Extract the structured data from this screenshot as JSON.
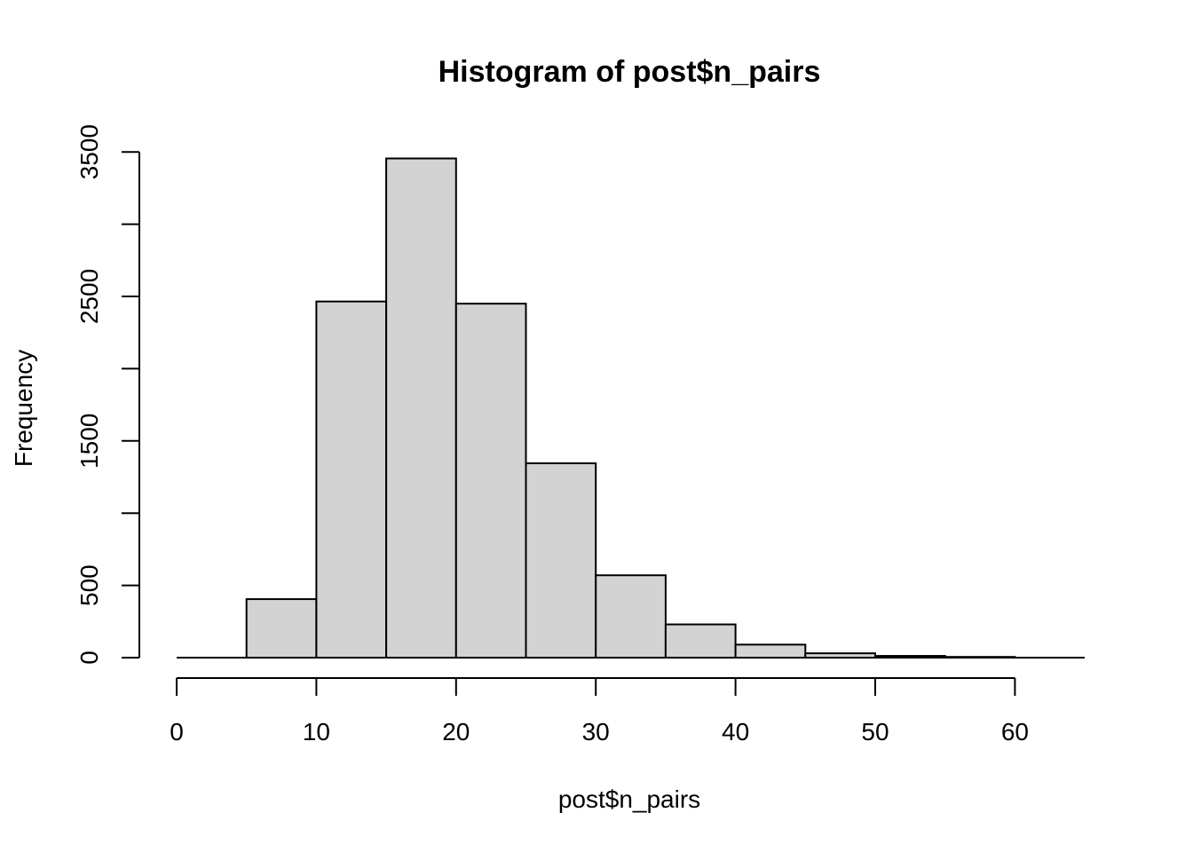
{
  "chart_data": {
    "type": "bar",
    "title": "Histogram of post$n_pairs",
    "xlabel": "post$n_pairs",
    "ylabel": "Frequency",
    "bins": [
      {
        "from": 0,
        "to": 5,
        "value": 0
      },
      {
        "from": 5,
        "to": 10,
        "value": 405
      },
      {
        "from": 10,
        "to": 15,
        "value": 2465
      },
      {
        "from": 15,
        "to": 20,
        "value": 3455
      },
      {
        "from": 20,
        "to": 25,
        "value": 2450
      },
      {
        "from": 25,
        "to": 30,
        "value": 1345
      },
      {
        "from": 30,
        "to": 35,
        "value": 570
      },
      {
        "from": 35,
        "to": 40,
        "value": 230
      },
      {
        "from": 40,
        "to": 45,
        "value": 90
      },
      {
        "from": 45,
        "to": 50,
        "value": 30
      },
      {
        "from": 50,
        "to": 55,
        "value": 12
      },
      {
        "from": 55,
        "to": 60,
        "value": 5
      },
      {
        "from": 60,
        "to": 65,
        "value": 0
      }
    ],
    "x_ticks": [
      "0",
      "10",
      "20",
      "30",
      "40",
      "50",
      "60"
    ],
    "y_ticks": [
      "0",
      "500",
      "1500",
      "2500",
      "3500"
    ],
    "xlim": [
      0,
      65
    ],
    "ylim": [
      0,
      3500
    ],
    "grid": false,
    "bar_color": "#d3d3d3",
    "border_color": "#000000"
  }
}
